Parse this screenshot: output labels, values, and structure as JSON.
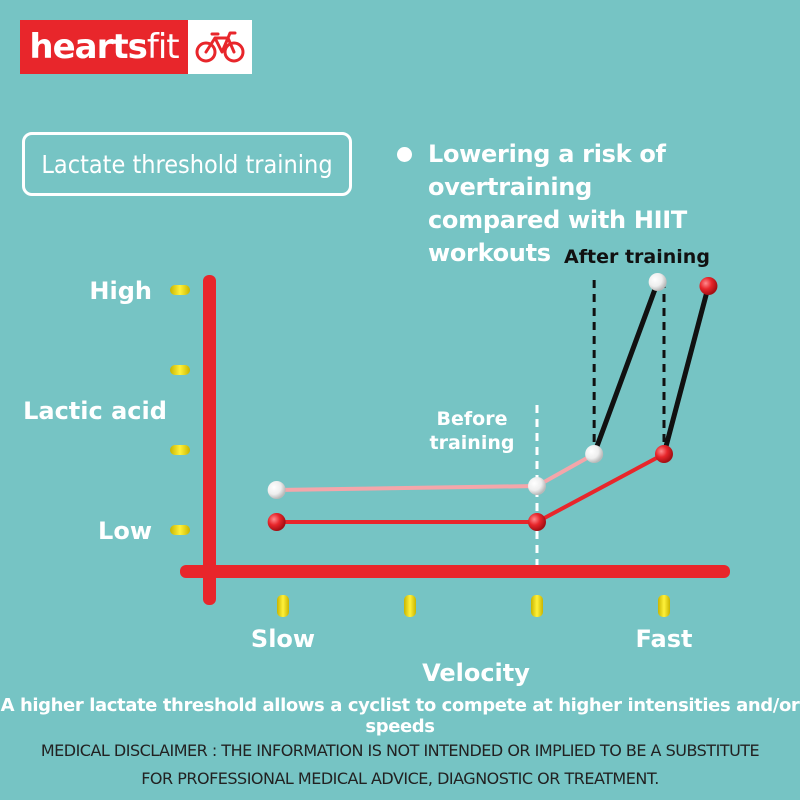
{
  "brand": {
    "logo_text_bold": "hearts",
    "logo_text_light": "fit",
    "logo_icon": "bicycle-icon"
  },
  "title": "Lactate threshold training",
  "bullet": "Lowering a risk of overtraining\ncompared with HIIT workouts",
  "caption": "A higher lactate threshold allows a cyclist to compete at higher intensities and/or speeds",
  "disclaimer": {
    "line1": "MEDICAL DISCLAIMER : THE INFORMATION IS NOT INTENDED OR IMPLIED TO BE A SUBSTITUTE",
    "line2": "FOR PROFESSIONAL MEDICAL ADVICE, DIAGNOSTIC OR TREATMENT."
  },
  "colors": {
    "background": "#76c4c4",
    "accent_red": "#e8262b",
    "before_line": "#f4a6aa",
    "tick_yellow": "#f7e11b"
  },
  "chart_data": {
    "type": "line",
    "xlabel": "Velocity",
    "ylabel": "Lactic acid",
    "x_ticks": [
      "Slow",
      "",
      "",
      "Fast"
    ],
    "y_ticks": [
      "Low",
      "",
      "",
      "High"
    ],
    "xlim": [
      0.5,
      4.5
    ],
    "ylim": [
      0.3,
      4.2
    ],
    "annotations": {
      "before": "Before\ntraining",
      "after": "After training"
    },
    "series": [
      {
        "name": "",
        "color": "#f4a6aa",
        "marker": "#f2f2f2",
        "points": [
          [
            0.95,
            1.5
          ],
          [
            3.0,
            1.55
          ],
          [
            3.45,
            1.95
          ],
          [
            3.95,
            4.1
          ]
        ]
      },
      {
        "name": "",
        "color": "#e8262b",
        "marker": "#e8262b",
        "points": [
          [
            0.95,
            1.1
          ],
          [
            3.0,
            1.1
          ],
          [
            4.0,
            1.95
          ],
          [
            4.35,
            4.05
          ]
        ]
      }
    ]
  }
}
